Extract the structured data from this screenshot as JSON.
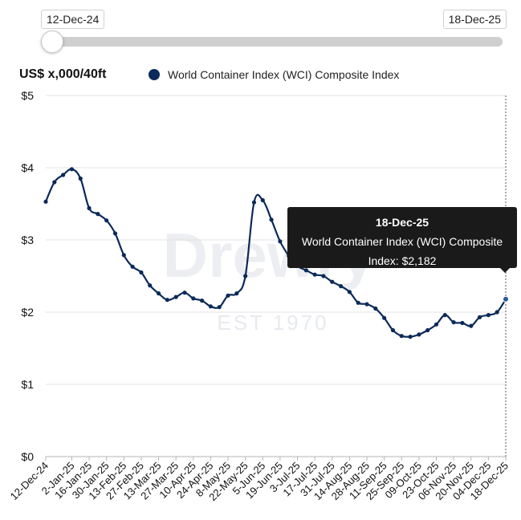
{
  "range_selector": {
    "start_label": "12-Dec-24",
    "end_label": "18-Dec-25"
  },
  "unit_label": "US$ x,000/40ft",
  "legend": {
    "label": "World Container Index (WCI) Composite Index",
    "color": "#0b2a59"
  },
  "watermark": {
    "brand": "Drewry",
    "est": "EST 1970"
  },
  "tooltip": {
    "date": "18-Dec-25",
    "series": "World Container Index (WCI) Composite",
    "value_text": "Index: $2,182"
  },
  "chart_data": {
    "type": "line",
    "title": "",
    "ylabel": "US$ x,000/40ft",
    "xlabel": "",
    "ylim": [
      0,
      5
    ],
    "yticks": [
      0,
      1,
      2,
      3,
      4,
      5
    ],
    "ytick_labels": [
      "$0",
      "$1",
      "$2",
      "$3",
      "$4",
      "$5"
    ],
    "grid": true,
    "line_color": "#0b2a59",
    "x_tick_labels": [
      "12-Dec-24",
      "2-Jan-25",
      "16-Jan-25",
      "30-Jan-25",
      "13-Feb-25",
      "27-Feb-25",
      "13-Mar-25",
      "27-Mar-25",
      "10-Apr-25",
      "24-Apr-25",
      "8-May-25",
      "22-May-25",
      "5-Jun-25",
      "19-Jun-25",
      "3-Jul-25",
      "17-Jul-25",
      "31-Jul-25",
      "14-Aug-25",
      "28-Aug-25",
      "11-Sep-25",
      "25-Sep-25",
      "09-Oct-25",
      "23-Oct-25",
      "06-Nov-25",
      "20-Nov-25",
      "04-Dec-25",
      "18-Dec-25"
    ],
    "series": [
      {
        "name": "World Container Index (WCI) Composite Index",
        "x": [
          "12-Dec-24",
          "19-Dec-24",
          "26-Dec-24",
          "2-Jan-25",
          "9-Jan-25",
          "16-Jan-25",
          "23-Jan-25",
          "30-Jan-25",
          "6-Feb-25",
          "13-Feb-25",
          "20-Feb-25",
          "27-Feb-25",
          "6-Mar-25",
          "13-Mar-25",
          "20-Mar-25",
          "27-Mar-25",
          "3-Apr-25",
          "10-Apr-25",
          "17-Apr-25",
          "24-Apr-25",
          "1-May-25",
          "8-May-25",
          "15-May-25",
          "22-May-25",
          "29-May-25",
          "5-Jun-25",
          "12-Jun-25",
          "19-Jun-25",
          "26-Jun-25",
          "3-Jul-25",
          "10-Jul-25",
          "17-Jul-25",
          "24-Jul-25",
          "31-Jul-25",
          "7-Aug-25",
          "14-Aug-25",
          "21-Aug-25",
          "28-Aug-25",
          "4-Sep-25",
          "11-Sep-25",
          "18-Sep-25",
          "25-Sep-25",
          "2-Oct-25",
          "09-Oct-25",
          "16-Oct-25",
          "23-Oct-25",
          "30-Oct-25",
          "06-Nov-25",
          "13-Nov-25",
          "20-Nov-25",
          "27-Nov-25",
          "04-Dec-25",
          "11-Dec-25",
          "18-Dec-25"
        ],
        "values": [
          3.53,
          3.8,
          3.9,
          3.98,
          3.85,
          3.44,
          3.36,
          3.27,
          3.09,
          2.79,
          2.63,
          2.55,
          2.37,
          2.26,
          2.17,
          2.21,
          2.27,
          2.19,
          2.16,
          2.08,
          2.07,
          2.23,
          2.26,
          2.5,
          3.52,
          3.55,
          3.28,
          2.98,
          2.78,
          2.64,
          2.58,
          2.52,
          2.5,
          2.42,
          2.36,
          2.28,
          2.13,
          2.11,
          2.05,
          1.92,
          1.75,
          1.67,
          1.66,
          1.69,
          1.75,
          1.83,
          1.96,
          1.86,
          1.85,
          1.81,
          1.93,
          1.96,
          2.0,
          2.18
        ]
      }
    ]
  }
}
